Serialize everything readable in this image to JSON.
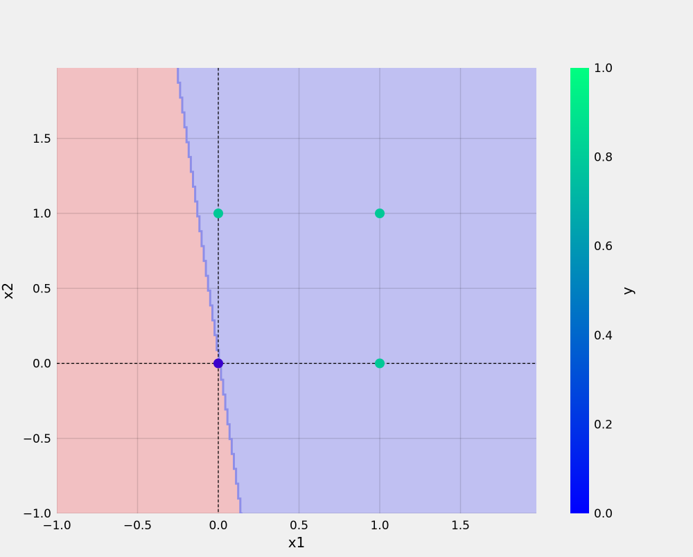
{
  "chart_data": {
    "type": "scatter",
    "title": "",
    "xlabel": "x1",
    "ylabel": "x2",
    "xlim": [
      -1.0,
      1.97
    ],
    "ylim": [
      -1.0,
      1.97
    ],
    "xticks": [
      -1.0,
      -0.5,
      0.0,
      0.5,
      1.0,
      1.5
    ],
    "xtick_labels": [
      "−1.0",
      "−0.5",
      "0.0",
      "0.5",
      "1.0",
      "1.5"
    ],
    "yticks": [
      -1.0,
      -0.5,
      0.0,
      0.5,
      1.0,
      1.5
    ],
    "ytick_labels": [
      "−1.0",
      "−0.5",
      "0.0",
      "0.5",
      "1.0",
      "1.5"
    ],
    "grid": true,
    "points": [
      {
        "x": 0,
        "y": 0,
        "label": 0
      },
      {
        "x": 0,
        "y": 1,
        "label": 1
      },
      {
        "x": 1,
        "y": 0,
        "label": 1
      },
      {
        "x": 1,
        "y": 1,
        "label": 1
      }
    ],
    "decision_boundary": {
      "line": [
        {
          "x": -0.25,
          "y": 1.97
        },
        {
          "x": 0.15,
          "y": -1.0
        }
      ],
      "left_region_label": 0,
      "right_region_label": 1,
      "left_region_color": "#f2c0c2",
      "right_region_color": "#c0c0f2",
      "boundary_color": "#8e8ee8"
    },
    "reference_lines": {
      "x": 0,
      "y": 0,
      "style": "dashed"
    },
    "colorbar": {
      "label": "y",
      "min": 0.0,
      "max": 1.0,
      "ticks": [
        0.0,
        0.2,
        0.4,
        0.6,
        0.8,
        1.0
      ],
      "tick_labels": [
        "0.0",
        "0.2",
        "0.4",
        "0.6",
        "0.8",
        "1.0"
      ],
      "color_low": "#0000ff",
      "color_high": "#00ff80"
    },
    "point_colors": {
      "0": "#3a00cc",
      "1": "#00c896"
    }
  }
}
